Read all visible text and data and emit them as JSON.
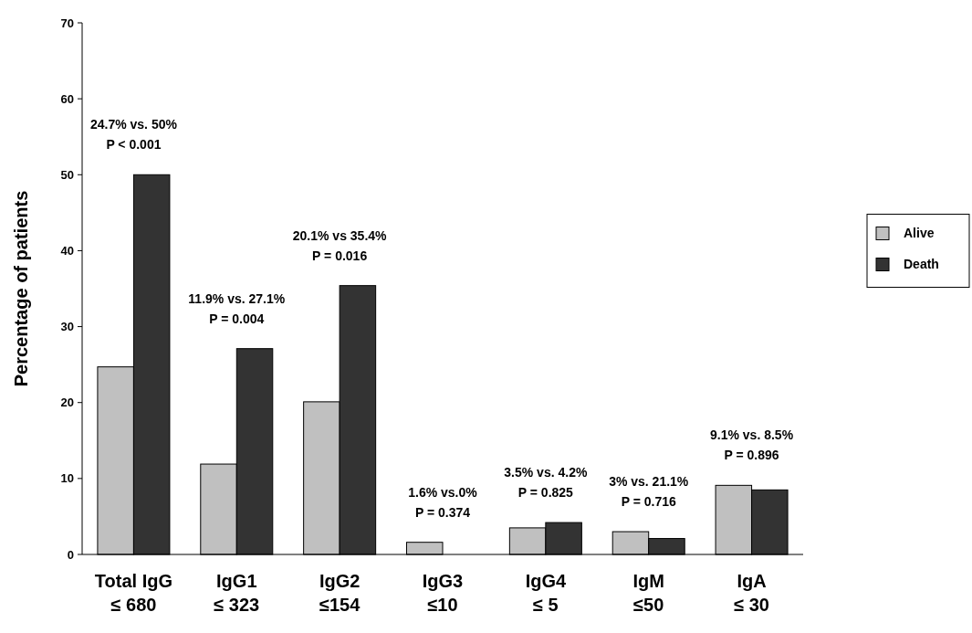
{
  "chart_data": {
    "type": "bar",
    "ylabel": "Percentage of patients",
    "categories": [
      "Total IgG\n≤ 680",
      "IgG1\n≤ 323",
      "IgG2\n≤154",
      "IgG3\n≤10",
      "IgG4\n≤ 5",
      "IgM\n≤50",
      "IgA\n≤ 30"
    ],
    "series": [
      {
        "name": "Alive",
        "color": "#c0c0c0",
        "values": [
          24.7,
          11.9,
          20.1,
          1.6,
          3.5,
          3,
          9.1
        ]
      },
      {
        "name": "Death",
        "color": "#333333",
        "values": [
          50,
          27.1,
          35.4,
          0,
          4.2,
          2.1,
          8.5
        ]
      }
    ],
    "ylim": [
      0,
      70
    ],
    "yticks": [
      0,
      10,
      20,
      30,
      40,
      50,
      60,
      70
    ],
    "grid": false,
    "legend": "right",
    "annotations": [
      "24.7% vs. 50%\nP < 0.001",
      "11.9% vs. 27.1%\nP = 0.004",
      "20.1% vs 35.4%\nP = 0.016",
      "1.6% vs.0%\nP = 0.374",
      "3.5% vs. 4.2%\nP = 0.825",
      "3% vs. 21.1%\nP = 0.716",
      "9.1% vs. 8.5%\nP = 0.896"
    ]
  }
}
